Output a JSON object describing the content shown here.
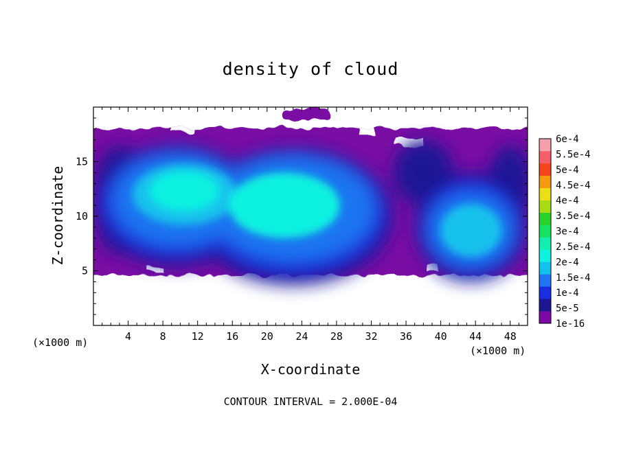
{
  "chart_data": {
    "type": "heatmap",
    "title": "density of cloud",
    "xlabel": "X-coordinate",
    "ylabel": "Z-coordinate",
    "x_unit": "(×1000 m)",
    "z_unit": "(×1000 m)",
    "xlim": [
      0,
      50
    ],
    "ylim": [
      0,
      20
    ],
    "x_ticks": [
      4,
      8,
      12,
      16,
      20,
      24,
      28,
      32,
      36,
      40,
      44,
      48
    ],
    "y_ticks": [
      5,
      10,
      15
    ],
    "colorbar": {
      "levels": [
        "1e-16",
        "5e-5",
        "1e-4",
        "1.5e-4",
        "2e-4",
        "2.5e-4",
        "3e-4",
        "3.5e-4",
        "4e-4",
        "4.5e-4",
        "5e-4",
        "5.5e-4",
        "6e-4"
      ],
      "colors": [
        "#7a0aa3",
        "#1a1694",
        "#1a2ee0",
        "#1f74f0",
        "#12c2ec",
        "#0ef2e0",
        "#12eeb0",
        "#18e060",
        "#2ad32a",
        "#a8dc14",
        "#eae014",
        "#f59a0c",
        "#f4461a",
        "#f4606a",
        "#f6a0ac"
      ]
    },
    "contour_interval": "CONTOUR INTERVAL = 2.000E-04",
    "regions": [
      {
        "name": "main-cloud-envelope",
        "level": 0,
        "xlim": [
          0,
          50
        ],
        "zlim": [
          4.6,
          18.1
        ]
      },
      {
        "name": "upper-cloud-patch",
        "level": 0,
        "xlim": [
          21.7,
          27.3
        ],
        "zlim": [
          18.8,
          19.8
        ]
      },
      {
        "name": "left-core",
        "level": 4,
        "center": [
          10.5,
          11.5
        ]
      },
      {
        "name": "center-core",
        "level": 5,
        "center": [
          22,
          11
        ]
      },
      {
        "name": "right-core",
        "level": 4,
        "center": [
          43.5,
          8.7
        ]
      }
    ]
  },
  "colors": {
    "background": "#ffffff",
    "axis": "#000000"
  }
}
